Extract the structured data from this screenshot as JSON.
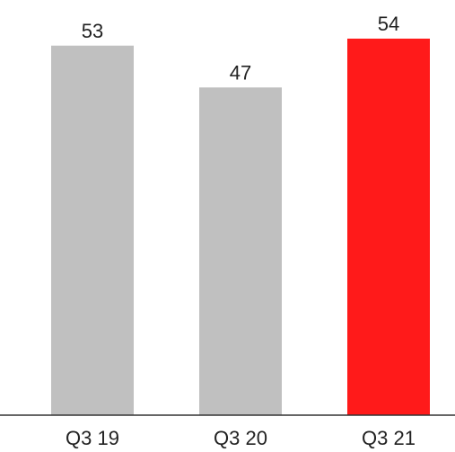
{
  "chart_data": {
    "type": "bar",
    "categories": [
      "Q3 19",
      "Q3 20",
      "Q3 21"
    ],
    "values": [
      53,
      47,
      54
    ],
    "data_labels": [
      "53",
      "47",
      "54"
    ],
    "title": "",
    "xlabel": "",
    "ylabel": "",
    "ylim": [
      0,
      54
    ],
    "grid": false,
    "legend": "none",
    "bar_colors": [
      "#c0c0c0",
      "#c0c0c0",
      "#ff1a1a"
    ],
    "axis_color": "#333333"
  }
}
